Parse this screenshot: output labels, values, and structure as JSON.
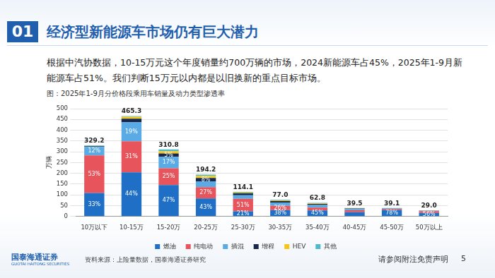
{
  "slide": {
    "section_number": "01",
    "title": "经济型新能源车市场仍有巨大潜力",
    "body": "根据中汽协数据，10-15万元这个年度销量约700万辆的市场，2024新能源车占45%，2025年1-9月新能源车占51%。我们判断15万元以内都是以旧换新的重点目标市场。",
    "caption": "图：2025年1-9月分价格段乘用车销量及动力类型渗透率",
    "source": "资料来源：上险量数据，国泰海通证券研究",
    "logo": "国泰海通证券",
    "logo_en": "GUOTAI HAITONG SECURITIES",
    "disclaimer": "请参阅附注免责声明",
    "page_number": 5
  },
  "chart_data": {
    "type": "bar",
    "stacked": true,
    "y_label": "万辆",
    "categories": [
      "10万以下",
      "10-15万",
      "15-20万",
      "20-25万",
      "25-30万",
      "30-35万",
      "35-40万",
      "40-45万",
      "45-50万",
      "50万以上"
    ],
    "totals": [
      329.2,
      465.3,
      310.8,
      194.2,
      114.1,
      77.0,
      62.8,
      39.5,
      39.1,
      29.0
    ],
    "total_labels": [
      "329.2",
      "465.3",
      "310.8",
      "194.2",
      "114.1",
      "77.0",
      "62.8",
      "39.5",
      "39.1",
      "29.0"
    ],
    "series": [
      {
        "name": "燃油",
        "color": "#1f6fc6",
        "values": [
          108.6,
          204.7,
          146.1,
          83.5,
          24.0,
          29.3,
          28.3,
          19.8,
          30.5,
          16.2
        ],
        "share_labels": [
          "33%",
          "44%",
          "47%",
          "43%",
          "21%",
          "38%",
          "45%",
          null,
          "78%",
          "56%"
        ]
      },
      {
        "name": "纯电动",
        "color": "#e8545c",
        "values": [
          174.5,
          144.2,
          77.7,
          52.4,
          58.2,
          20.0,
          12.6,
          9.0,
          4.5,
          8.5
        ],
        "share_labels": [
          "53%",
          "31%",
          "25%",
          "27%",
          "51%",
          "26%",
          null,
          null,
          null,
          null
        ]
      },
      {
        "name": "插混",
        "color": "#5aaae6",
        "values": [
          39.5,
          88.4,
          52.8,
          27.2,
          16.0,
          15.4,
          12.6,
          6.0,
          2.2,
          2.5
        ],
        "share_labels": [
          "12%",
          "19%",
          "17%",
          null,
          null,
          null,
          null,
          null,
          null,
          null
        ]
      },
      {
        "name": "增程",
        "color": "#17284a",
        "values": [
          3.3,
          16.0,
          15.5,
          15.5,
          9.1,
          7.0,
          5.0,
          2.5,
          0.8,
          0.8
        ],
        "share_labels": [
          null,
          null,
          "5%",
          "8%",
          null,
          null,
          null,
          null,
          null,
          null
        ]
      },
      {
        "name": "HEV",
        "color": "#f5c51b",
        "values": [
          1.0,
          9.0,
          11.0,
          9.7,
          3.5,
          3.0,
          2.5,
          1.2,
          0.6,
          0.5
        ],
        "share_labels": [
          null,
          null,
          null,
          null,
          null,
          null,
          null,
          null,
          null,
          null
        ]
      },
      {
        "name": "其他",
        "color": "#4fb9c9",
        "values": [
          2.3,
          3.0,
          7.7,
          5.9,
          3.3,
          2.3,
          1.8,
          1.0,
          0.5,
          0.5
        ],
        "share_labels": [
          null,
          null,
          null,
          null,
          null,
          null,
          null,
          null,
          null,
          null
        ]
      }
    ],
    "ylim": [
      0,
      500
    ],
    "yticks": [
      0,
      50,
      100,
      150,
      200,
      250,
      300,
      350,
      400,
      450,
      500
    ],
    "grid": true,
    "legend": "bottom",
    "data_labels": true
  }
}
